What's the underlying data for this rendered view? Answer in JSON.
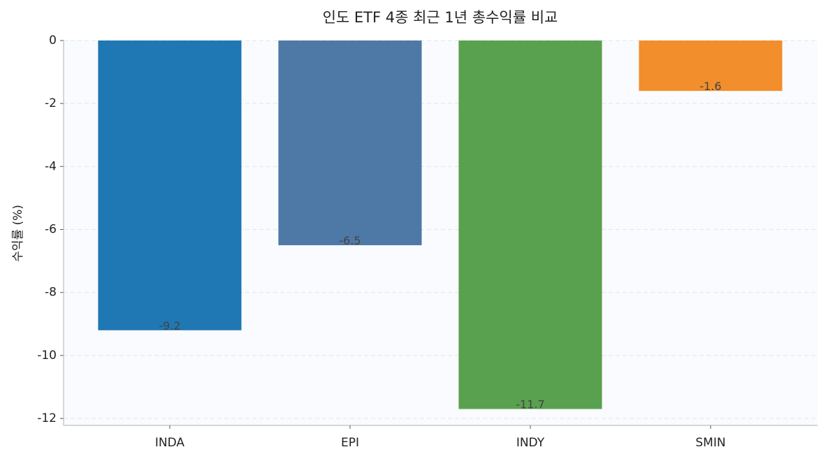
{
  "chart_data": {
    "type": "bar",
    "title": "인도 ETF 4종 최근 1년 총수익률 비교",
    "y_label": "수익률 (%)",
    "categories": [
      "INDA",
      "EPI",
      "INDY",
      "SMIN"
    ],
    "values": [
      -9.2,
      -6.5,
      -11.7,
      -1.6
    ],
    "colors": [
      "#1f77b4",
      "#4e79a7",
      "#59a14f",
      "#f28e2b"
    ],
    "ylim": [
      -12.22,
      0
    ],
    "yticks": [
      0,
      -2,
      -4,
      -6,
      -8,
      -10,
      -12
    ],
    "grid": true
  }
}
